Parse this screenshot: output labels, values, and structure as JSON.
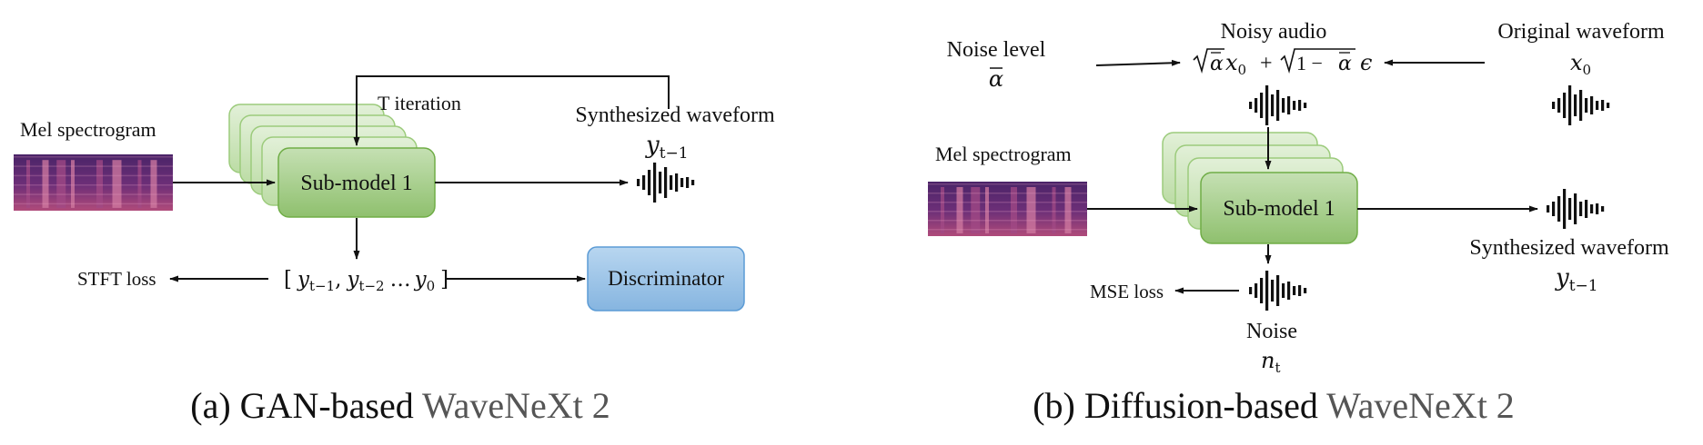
{
  "panel_a": {
    "mel_label": "Mel spectrogram",
    "iteration_label": "T iteration",
    "submodel_label": "Sub-model 1",
    "output_label": "Synthesized waveform",
    "output_symbol": "y",
    "output_subscript": "t−1",
    "loss_label": "STFT loss",
    "sequence_open": "[",
    "sequence_y1": "y",
    "sequence_y1_sub": "t−1",
    "sequence_sep": ",",
    "sequence_y2": "y",
    "sequence_y2_sub": "t−2",
    "sequence_dots": "…",
    "sequence_y0": "y",
    "sequence_y0_sub": "0",
    "sequence_close": "]",
    "discriminator_label": "Discriminator",
    "caption_prefix": "(a) GAN-based",
    "caption_name": "WaveNeXt 2"
  },
  "panel_b": {
    "noise_level_label": "Noise level",
    "noise_level_symbol": "α",
    "noisy_audio_label": "Noisy audio",
    "noisy_formula": {
      "alpha": "α",
      "x": "x",
      "x_sub": "0",
      "plus": "+",
      "one_minus": "1 −",
      "alpha2": "α",
      "eps": "ϵ"
    },
    "original_label": "Original waveform",
    "original_symbol": "x",
    "original_subscript": "0",
    "mel_label": "Mel spectrogram",
    "submodel_label": "Sub-model 1",
    "output_label": "Synthesized waveform",
    "output_symbol": "y",
    "output_subscript": "t−1",
    "loss_label": "MSE loss",
    "noise_label": "Noise",
    "noise_symbol": "n",
    "noise_subscript": "t",
    "caption_prefix": "(b) Diffusion-based",
    "caption_name": "WaveNeXt 2"
  },
  "colors": {
    "block_fill": "#a9d18e",
    "block_stack": "#c8e3b4",
    "block_stroke": "#70ad47",
    "discriminator_fill": "#9dc3e6",
    "discriminator_stroke": "#5b9bd5",
    "spectrogram_base": "#3b1f5c",
    "spectrogram_hot": "#c9679a"
  }
}
